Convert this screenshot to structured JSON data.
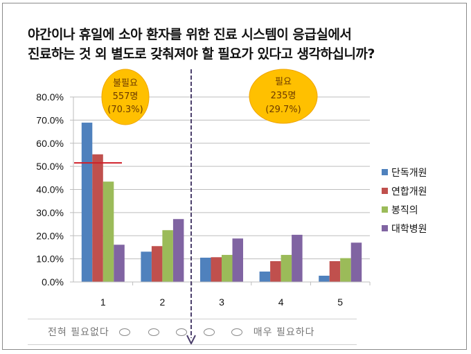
{
  "title_lines": [
    "야간이나 휴일에 소아 환자를 위한 진료 시스템이 응급실에서",
    "진료하는 것 외 별도로 갖춰져야 할 필요가 있다고 생각하십니까?"
  ],
  "callouts": [
    {
      "line1": "불필요",
      "line2": "557명",
      "line3": "(70.3%)"
    },
    {
      "line1": "필요",
      "line2": "235명",
      "line3": "(29.7%)"
    }
  ],
  "scale": {
    "left_label": "전혀 필요없다",
    "right_label": "매우 필요하다",
    "circle_glyph": "○"
  },
  "colors": {
    "blue": "#4f81bd",
    "red": "#c0504d",
    "green": "#9bbb59",
    "purple": "#8064a2",
    "callout_fill": "#ffc000",
    "callout_stroke": "#f0a500",
    "divider": "#4b3f6b",
    "marker_line": "#d0202a"
  },
  "chart_data": {
    "type": "bar",
    "title": "야간이나 휴일에 소아 환자를 위한 진료 시스템이 응급실에서 진료하는 것 외 별도로 갖춰져야 할 필요가 있다고 생각하십니까?",
    "categories": [
      "1",
      "2",
      "3",
      "4",
      "5"
    ],
    "series": [
      {
        "name": "단독개원",
        "color": "#4f81bd",
        "values": [
          68.9,
          13.1,
          10.5,
          4.5,
          2.7
        ]
      },
      {
        "name": "연합개원",
        "color": "#c0504d",
        "values": [
          55.2,
          15.5,
          10.7,
          9.0,
          9.0
        ]
      },
      {
        "name": "봉직의",
        "color": "#9bbb59",
        "values": [
          43.4,
          22.4,
          11.7,
          11.7,
          10.3
        ]
      },
      {
        "name": "대학병원",
        "color": "#8064a2",
        "values": [
          16.1,
          27.2,
          18.8,
          20.4,
          17.0
        ]
      }
    ],
    "yticks": [
      "0.0%",
      "10.0%",
      "20.0%",
      "30.0%",
      "40.0%",
      "50.0%",
      "60.0%",
      "70.0%",
      "80.0%"
    ],
    "ylim": [
      0,
      80
    ],
    "xlabel": "",
    "ylabel": "",
    "grid": true,
    "legend_position": "right",
    "reference_line_value": 51.5,
    "divider_between_categories": [
      "2",
      "3"
    ]
  }
}
